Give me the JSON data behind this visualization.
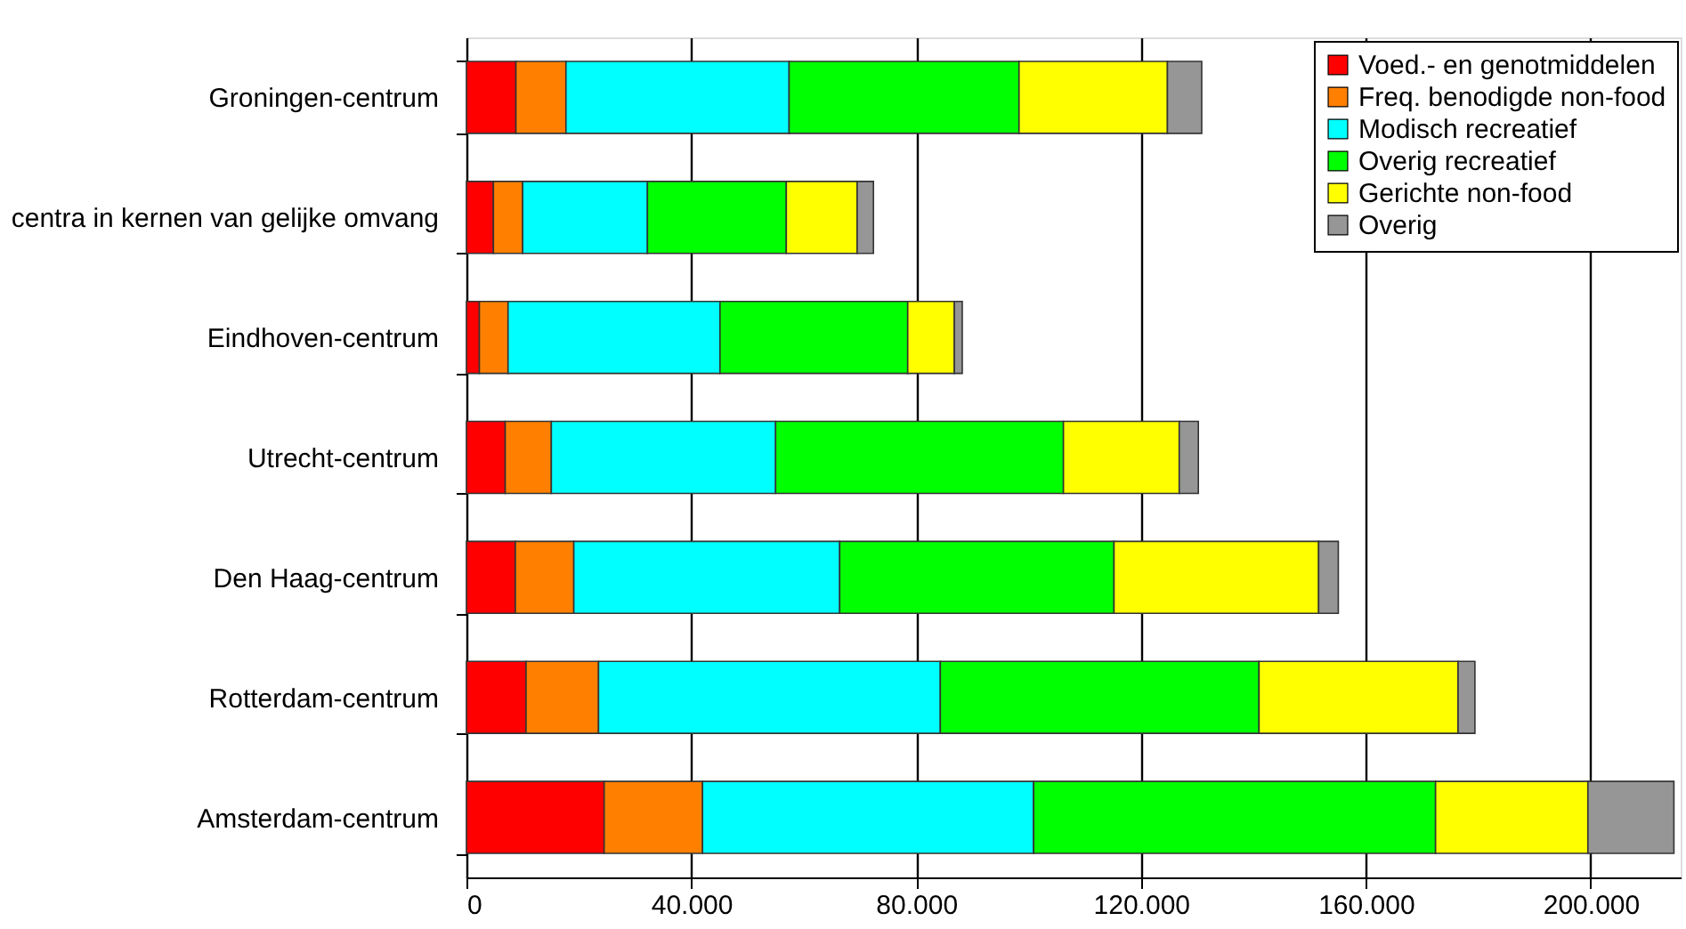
{
  "chart_data": {
    "type": "bar",
    "orientation": "horizontal",
    "stacked": true,
    "categories": [
      "Groningen-centrum",
      "centra in kernen van gelijke omvang",
      "Eindhoven-centrum",
      "Utrecht-centrum",
      "Den Haag-centrum",
      "Rotterdam-centrum",
      "Amsterdam-centrum"
    ],
    "series": [
      {
        "name": "Voed.- en genotmiddelen",
        "color": "#ff0000",
        "values": [
          8800,
          4800,
          2300,
          6900,
          8700,
          10600,
          24500
        ]
      },
      {
        "name": "Freq. benodigde non-food",
        "color": "#ff8000",
        "values": [
          8900,
          5200,
          5100,
          8200,
          10400,
          12900,
          17500
        ]
      },
      {
        "name": "Modisch recreatief",
        "color": "#00ffff",
        "values": [
          39700,
          22200,
          37700,
          39900,
          47300,
          60800,
          58900
        ]
      },
      {
        "name": "Overig recreatief",
        "color": "#00ff00",
        "values": [
          40900,
          24700,
          33400,
          51200,
          48800,
          56700,
          71500
        ]
      },
      {
        "name": "Gerichte non-food",
        "color": "#ffff00",
        "values": [
          26400,
          12600,
          8300,
          20600,
          36400,
          35400,
          27100
        ]
      },
      {
        "name": "Overig",
        "color": "#969696",
        "values": [
          6100,
          2900,
          1400,
          3400,
          3500,
          3000,
          15300
        ]
      }
    ],
    "xlim": [
      0,
      216000
    ],
    "xticks": [
      0,
      {
        "value": 40000,
        "label": "40.000"
      },
      {
        "value": 80000,
        "label": "80.000"
      },
      {
        "value": 120000,
        "label": "120.000"
      },
      {
        "value": 160000,
        "label": "160.000"
      },
      {
        "value": 200000,
        "label": "200.000"
      }
    ],
    "grid": "x",
    "legend": "top right"
  }
}
